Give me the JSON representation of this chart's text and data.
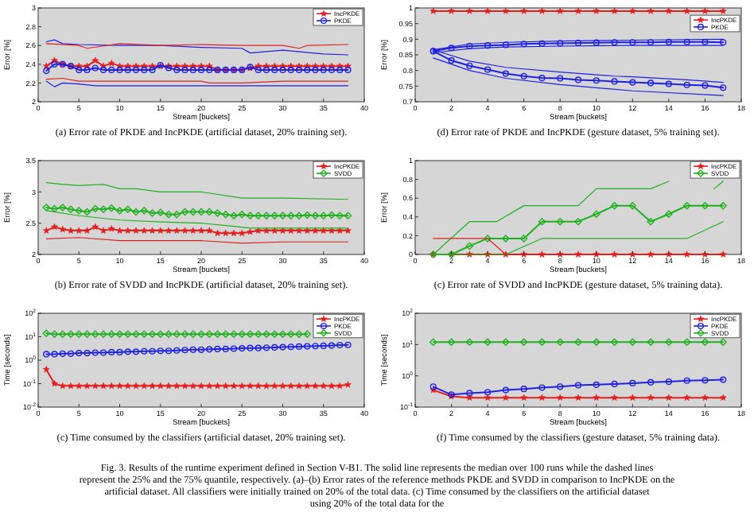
{
  "chart_data": [
    {
      "type": "line",
      "title": "(a) Error rate of PKDE and IncPKDE (artificial dataset, 20% training set).",
      "xlabel": "Stream [buckets]",
      "ylabel": "Error [%]",
      "x": [
        1,
        2,
        3,
        4,
        5,
        6,
        7,
        8,
        9,
        10,
        11,
        12,
        13,
        14,
        15,
        16,
        17,
        18,
        19,
        20,
        21,
        22,
        23,
        24,
        25,
        26,
        27,
        28,
        29,
        30,
        31,
        32,
        33,
        34,
        35,
        36,
        37,
        38
      ],
      "xlim": [
        0,
        40
      ],
      "xticks": [
        0,
        5,
        10,
        15,
        20,
        25,
        30,
        35,
        40
      ],
      "ylim": [
        2,
        3
      ],
      "yticks": [
        2,
        2.2,
        2.4,
        2.6,
        2.8,
        3
      ],
      "legend": "top right",
      "series": [
        {
          "name": "IncPKDE",
          "color": "#e02020",
          "marker": "star",
          "values": [
            2.38,
            2.44,
            2.4,
            2.38,
            2.38,
            2.38,
            2.44,
            2.38,
            2.41,
            2.38,
            2.38,
            2.38,
            2.38,
            2.38,
            2.38,
            2.38,
            2.38,
            2.38,
            2.38,
            2.38,
            2.38,
            2.34,
            2.34,
            2.34,
            2.34,
            2.36,
            2.38,
            2.38,
            2.38,
            2.38,
            2.38,
            2.38,
            2.38,
            2.38,
            2.38,
            2.38,
            2.38,
            2.38
          ]
        },
        {
          "name": "PKDE",
          "color": "#2020e0",
          "marker": "circle",
          "values": [
            2.33,
            2.4,
            2.4,
            2.38,
            2.34,
            2.34,
            2.36,
            2.34,
            2.34,
            2.34,
            2.34,
            2.34,
            2.34,
            2.34,
            2.39,
            2.36,
            2.34,
            2.34,
            2.34,
            2.34,
            2.34,
            2.34,
            2.34,
            2.34,
            2.34,
            2.37,
            2.34,
            2.34,
            2.34,
            2.34,
            2.34,
            2.34,
            2.34,
            2.34,
            2.34,
            2.34,
            2.34,
            2.34
          ]
        },
        {
          "color": "#2020e0",
          "marker": "none",
          "x": [
            1,
            2,
            3,
            5,
            10,
            15,
            20,
            25,
            26,
            30,
            35,
            38
          ],
          "values": [
            2.64,
            2.66,
            2.62,
            2.61,
            2.6,
            2.6,
            2.58,
            2.57,
            2.52,
            2.55,
            2.51,
            2.5
          ]
        },
        {
          "color": "#e02020",
          "marker": "none",
          "x": [
            1,
            5,
            6,
            10,
            15,
            20,
            25,
            30,
            32,
            33,
            38
          ],
          "values": [
            2.62,
            2.6,
            2.57,
            2.62,
            2.6,
            2.61,
            2.6,
            2.6,
            2.57,
            2.6,
            2.61
          ]
        },
        {
          "color": "#e02020",
          "marker": "none",
          "x": [
            1,
            3,
            5,
            8,
            20,
            21,
            25,
            30,
            38
          ],
          "values": [
            2.24,
            2.25,
            2.22,
            2.22,
            2.22,
            2.2,
            2.2,
            2.22,
            2.22
          ]
        },
        {
          "color": "#2020e0",
          "marker": "none",
          "x": [
            1,
            2,
            3,
            5,
            7,
            20,
            38
          ],
          "values": [
            2.22,
            2.16,
            2.2,
            2.19,
            2.17,
            2.17,
            2.17
          ]
        }
      ]
    },
    {
      "type": "line",
      "title": "(d) Error rate of PKDE and IncPKDE (gesture dataset, 5% training set).",
      "xlabel": "Stream [buckets]",
      "ylabel": "Error [%]",
      "x": [
        1,
        2,
        3,
        4,
        5,
        6,
        7,
        8,
        9,
        10,
        11,
        12,
        13,
        14,
        15,
        16,
        17
      ],
      "xlim": [
        0,
        18
      ],
      "xticks": [
        0,
        2,
        4,
        6,
        8,
        10,
        12,
        14,
        16,
        18
      ],
      "ylim": [
        0.7,
        1
      ],
      "yticks": [
        0.7,
        0.75,
        0.8,
        0.85,
        0.9,
        0.95,
        1
      ],
      "legend": "top right",
      "series": [
        {
          "name": "IncPKDE",
          "color": "#e02020",
          "marker": "star",
          "values": [
            0.99,
            0.99,
            0.99,
            0.99,
            0.99,
            0.99,
            0.99,
            0.99,
            0.99,
            0.99,
            0.99,
            0.99,
            0.99,
            0.99,
            0.99,
            0.99,
            0.99
          ]
        },
        {
          "name": "PKDE",
          "color": "#2020e0",
          "marker": "circle",
          "values": [
            0.862,
            0.872,
            0.878,
            0.88,
            0.882,
            0.885,
            0.886,
            0.887,
            0.888,
            0.889,
            0.89,
            0.89,
            0.89,
            0.891,
            0.891,
            0.891,
            0.89
          ]
        },
        {
          "color": "#2020e0",
          "marker": "circle",
          "values": [
            0.862,
            0.832,
            0.815,
            0.803,
            0.79,
            0.782,
            0.776,
            0.775,
            0.77,
            0.768,
            0.765,
            0.762,
            0.76,
            0.757,
            0.754,
            0.752,
            0.745
          ]
        },
        {
          "color": "#2020e0",
          "marker": "none",
          "x": [
            1,
            3,
            5,
            8,
            12,
            17
          ],
          "values": [
            0.866,
            0.885,
            0.89,
            0.894,
            0.897,
            0.9
          ]
        },
        {
          "color": "#2020e0",
          "marker": "none",
          "x": [
            1,
            3,
            5,
            8,
            12,
            17
          ],
          "values": [
            0.857,
            0.87,
            0.875,
            0.878,
            0.88,
            0.88
          ]
        },
        {
          "color": "#2020e0",
          "marker": "none",
          "x": [
            1,
            3,
            5,
            8,
            11,
            12,
            15,
            17
          ],
          "values": [
            0.866,
            0.83,
            0.81,
            0.795,
            0.782,
            0.78,
            0.77,
            0.762
          ]
        },
        {
          "color": "#2020e0",
          "marker": "none",
          "x": [
            1,
            3,
            5,
            8,
            12,
            17
          ],
          "values": [
            0.84,
            0.8,
            0.775,
            0.755,
            0.735,
            0.72
          ]
        }
      ]
    },
    {
      "type": "line",
      "title": "(b) Error rate of SVDD and IncPKDE (artificial dataset, 20% training set).",
      "xlabel": "Stream [buckets]",
      "ylabel": "Error [%]",
      "x": [
        1,
        2,
        3,
        4,
        5,
        6,
        7,
        8,
        9,
        10,
        11,
        12,
        13,
        14,
        15,
        16,
        17,
        18,
        19,
        20,
        21,
        22,
        23,
        24,
        25,
        26,
        27,
        28,
        29,
        30,
        31,
        32,
        33,
        34,
        35,
        36,
        37,
        38
      ],
      "xlim": [
        0,
        40
      ],
      "xticks": [
        0,
        5,
        10,
        15,
        20,
        25,
        30,
        35,
        40
      ],
      "ylim": [
        2,
        3.5
      ],
      "yticks": [
        2,
        2.5,
        3,
        3.5
      ],
      "legend": "top right",
      "series": [
        {
          "name": "IncPKDE",
          "color": "#e02020",
          "marker": "star",
          "values": [
            2.38,
            2.44,
            2.4,
            2.38,
            2.38,
            2.38,
            2.44,
            2.38,
            2.41,
            2.38,
            2.38,
            2.38,
            2.38,
            2.38,
            2.38,
            2.38,
            2.38,
            2.38,
            2.38,
            2.38,
            2.38,
            2.34,
            2.34,
            2.34,
            2.34,
            2.36,
            2.38,
            2.38,
            2.38,
            2.38,
            2.38,
            2.38,
            2.38,
            2.38,
            2.38,
            2.38,
            2.38,
            2.38
          ]
        },
        {
          "name": "SVDD",
          "color": "#20b020",
          "marker": "diamond",
          "values": [
            2.75,
            2.73,
            2.75,
            2.72,
            2.7,
            2.68,
            2.73,
            2.72,
            2.74,
            2.7,
            2.72,
            2.68,
            2.7,
            2.66,
            2.67,
            2.64,
            2.64,
            2.68,
            2.68,
            2.68,
            2.68,
            2.66,
            2.64,
            2.62,
            2.64,
            2.62,
            2.62,
            2.62,
            2.62,
            2.62,
            2.62,
            2.62,
            2.63,
            2.62,
            2.62,
            2.63,
            2.62,
            2.62
          ]
        },
        {
          "color": "#20b020",
          "marker": "none",
          "x": [
            1,
            3,
            5,
            8,
            10,
            12,
            15,
            20,
            25,
            30,
            38
          ],
          "values": [
            3.15,
            3.12,
            3.1,
            3.12,
            3.05,
            3.05,
            3.0,
            3.0,
            2.9,
            2.9,
            2.88
          ]
        },
        {
          "color": "#20b020",
          "marker": "none",
          "x": [
            1,
            5,
            10,
            15,
            20,
            24,
            26,
            38
          ],
          "values": [
            2.7,
            2.62,
            2.55,
            2.52,
            2.5,
            2.45,
            2.42,
            2.42
          ]
        },
        {
          "color": "#e02020",
          "marker": "none",
          "x": [
            1,
            5,
            10,
            20,
            25,
            30,
            38
          ],
          "values": [
            2.25,
            2.27,
            2.22,
            2.22,
            2.18,
            2.2,
            2.2
          ]
        }
      ]
    },
    {
      "type": "line",
      "title": "(c) Error rate of SVDD and IncPKDE (gesture dataset, 5% training data).",
      "xlabel": "Stream [buckets]",
      "ylabel": "Error [%]",
      "x": [
        1,
        2,
        3,
        4,
        5,
        6,
        7,
        8,
        9,
        10,
        11,
        12,
        13,
        14,
        15,
        16,
        17
      ],
      "xlim": [
        0,
        18
      ],
      "xticks": [
        0,
        2,
        4,
        6,
        8,
        10,
        12,
        14,
        16,
        18
      ],
      "ylim": [
        0,
        1
      ],
      "yticks": [
        0,
        0.2,
        0.4,
        0.6,
        0.8,
        1
      ],
      "legend": "top right",
      "series": [
        {
          "name": "IncPKDE",
          "color": "#e02020",
          "marker": "star",
          "values": [
            0,
            0,
            0,
            0,
            0,
            0,
            0,
            0,
            0,
            0,
            0,
            0,
            0,
            0,
            0,
            0,
            0
          ]
        },
        {
          "name": "SVDD",
          "color": "#20b020",
          "marker": "diamond",
          "values": [
            0,
            0,
            0.09,
            0.17,
            0.17,
            0.17,
            0.35,
            0.35,
            0.35,
            0.43,
            0.52,
            0.52,
            0.35,
            0.43,
            0.52,
            0.52,
            0.52
          ]
        },
        {
          "color": "#20b020",
          "marker": "none",
          "x": [
            1,
            3,
            4.5,
            6,
            9,
            10,
            13,
            14,
            16,
            16.5,
            17
          ],
          "values": [
            0,
            0.35,
            0.35,
            0.52,
            0.52,
            0.7,
            0.7,
            0.78,
            null,
            0.7,
            0.78
          ]
        },
        {
          "color": "#20b020",
          "marker": "none",
          "x": [
            1,
            5,
            7,
            10,
            14.5,
            15,
            17
          ],
          "values": [
            0,
            0,
            0.17,
            0.17,
            0.17,
            0.17,
            0.35
          ]
        },
        {
          "color": "#e02020",
          "marker": "none",
          "x": [
            1,
            4,
            5
          ],
          "values": [
            0.17,
            0.17,
            0
          ]
        }
      ]
    },
    {
      "type": "line",
      "title": "(c) Time consumed by the classifiers (artificial dataset, 20% training set).",
      "xlabel": "Stream [buckets]",
      "ylabel": "Time [seconds]",
      "log": true,
      "x": [
        1,
        2,
        3,
        4,
        5,
        6,
        7,
        8,
        9,
        10,
        11,
        12,
        13,
        14,
        15,
        16,
        17,
        18,
        19,
        20,
        21,
        22,
        23,
        24,
        25,
        26,
        27,
        28,
        29,
        30,
        31,
        32,
        33,
        34,
        35,
        36,
        37,
        38
      ],
      "xlim": [
        0,
        40
      ],
      "xticks": [
        0,
        5,
        10,
        15,
        20,
        25,
        30,
        35,
        40
      ],
      "ylim": [
        0.01,
        100
      ],
      "yticks": [
        {
          "value": 0.01,
          "label": "10$^{-2}$"
        },
        {
          "value": 0.1,
          "label": "10$^{-1}$"
        },
        {
          "value": 1,
          "label": "10$^{0}$"
        },
        {
          "value": 10,
          "label": "10$^{1}$"
        },
        {
          "value": 100,
          "label": "10$^{2}$"
        }
      ],
      "legend": "top right",
      "series": [
        {
          "name": "IncPKDE",
          "color": "#e02020",
          "marker": "star",
          "values": [
            0.4,
            0.1,
            0.08,
            0.08,
            0.08,
            0.08,
            0.08,
            0.08,
            0.08,
            0.08,
            0.08,
            0.08,
            0.08,
            0.08,
            0.08,
            0.08,
            0.08,
            0.08,
            0.08,
            0.08,
            0.08,
            0.08,
            0.08,
            0.08,
            0.08,
            0.08,
            0.08,
            0.08,
            0.08,
            0.08,
            0.08,
            0.08,
            0.08,
            0.08,
            0.08,
            0.08,
            0.08,
            0.09
          ]
        },
        {
          "name": "PKDE",
          "color": "#2020e0",
          "marker": "circle",
          "values": [
            1.8,
            1.8,
            1.9,
            1.9,
            2.0,
            2.0,
            2.1,
            2.1,
            2.2,
            2.2,
            2.3,
            2.3,
            2.4,
            2.4,
            2.5,
            2.5,
            2.6,
            2.7,
            2.8,
            2.8,
            2.9,
            3.0,
            3.0,
            3.1,
            3.2,
            3.3,
            3.3,
            3.4,
            3.5,
            3.6,
            3.7,
            3.8,
            3.9,
            4.0,
            4.1,
            4.2,
            4.4,
            4.5
          ]
        },
        {
          "name": "SVDD",
          "color": "#20b020",
          "marker": "diamond",
          "values": [
            14,
            13,
            13,
            13,
            13,
            13,
            13,
            13,
            13,
            13,
            13,
            13,
            13,
            13,
            13,
            13,
            13,
            13,
            13,
            13,
            13,
            13,
            13,
            13,
            13,
            13,
            13,
            13,
            13,
            13,
            13,
            13,
            13,
            null,
            null,
            null,
            null,
            null
          ]
        }
      ]
    },
    {
      "type": "line",
      "title": "(f) Time consumed by the classifiers (gesture dataset, 5% training data).",
      "xlabel": "Stream [buckets]",
      "ylabel": "Time [seconds]",
      "log": true,
      "x": [
        1,
        2,
        3,
        4,
        5,
        6,
        7,
        8,
        9,
        10,
        11,
        12,
        13,
        14,
        15,
        16,
        17
      ],
      "xlim": [
        0,
        18
      ],
      "xticks": [
        0,
        2,
        4,
        6,
        8,
        10,
        12,
        14,
        16,
        18
      ],
      "ylim": [
        0.1,
        100
      ],
      "yticks": [
        {
          "value": 0.1,
          "label": "10$^{-1}$"
        },
        {
          "value": 1,
          "label": "10$^{0}$"
        },
        {
          "value": 10,
          "label": "10$^{1}$"
        },
        {
          "value": 100,
          "label": "10$^{2}$"
        }
      ],
      "legend": "top right",
      "series": [
        {
          "name": "IncPKDE",
          "color": "#e02020",
          "marker": "star",
          "values": [
            0.35,
            0.22,
            0.2,
            0.2,
            0.2,
            0.2,
            0.2,
            0.2,
            0.2,
            0.2,
            0.2,
            0.2,
            0.2,
            0.2,
            0.2,
            0.2,
            0.2
          ]
        },
        {
          "name": "PKDE",
          "color": "#2020e0",
          "marker": "circle",
          "values": [
            0.45,
            0.25,
            0.28,
            0.3,
            0.35,
            0.38,
            0.42,
            0.45,
            0.5,
            0.52,
            0.55,
            0.58,
            0.62,
            0.65,
            0.7,
            0.72,
            0.75
          ]
        },
        {
          "name": "SVDD",
          "color": "#20b020",
          "marker": "diamond",
          "values": [
            12,
            12,
            12,
            12,
            12,
            12,
            12,
            12,
            12,
            12,
            12,
            12,
            12,
            12,
            12,
            12,
            12
          ]
        }
      ],
      "annotations": [
        "Fig. 3. Results of the runtime experiment defined in Section V-B1. The solid line represents the median over 100 runs while the dashed lines represent the 25% and the 75% quantile, respectively. (a)–(b) Error rates of the reference methods PKDE and SVDD in comparison to IncPKDE on the artificial dataset. All classifiers were initially trained on 20% of the total data. (c) Time consumed by the classifiers on the artificial dataset using 20% of the total data for the"
      ]
    }
  ]
}
